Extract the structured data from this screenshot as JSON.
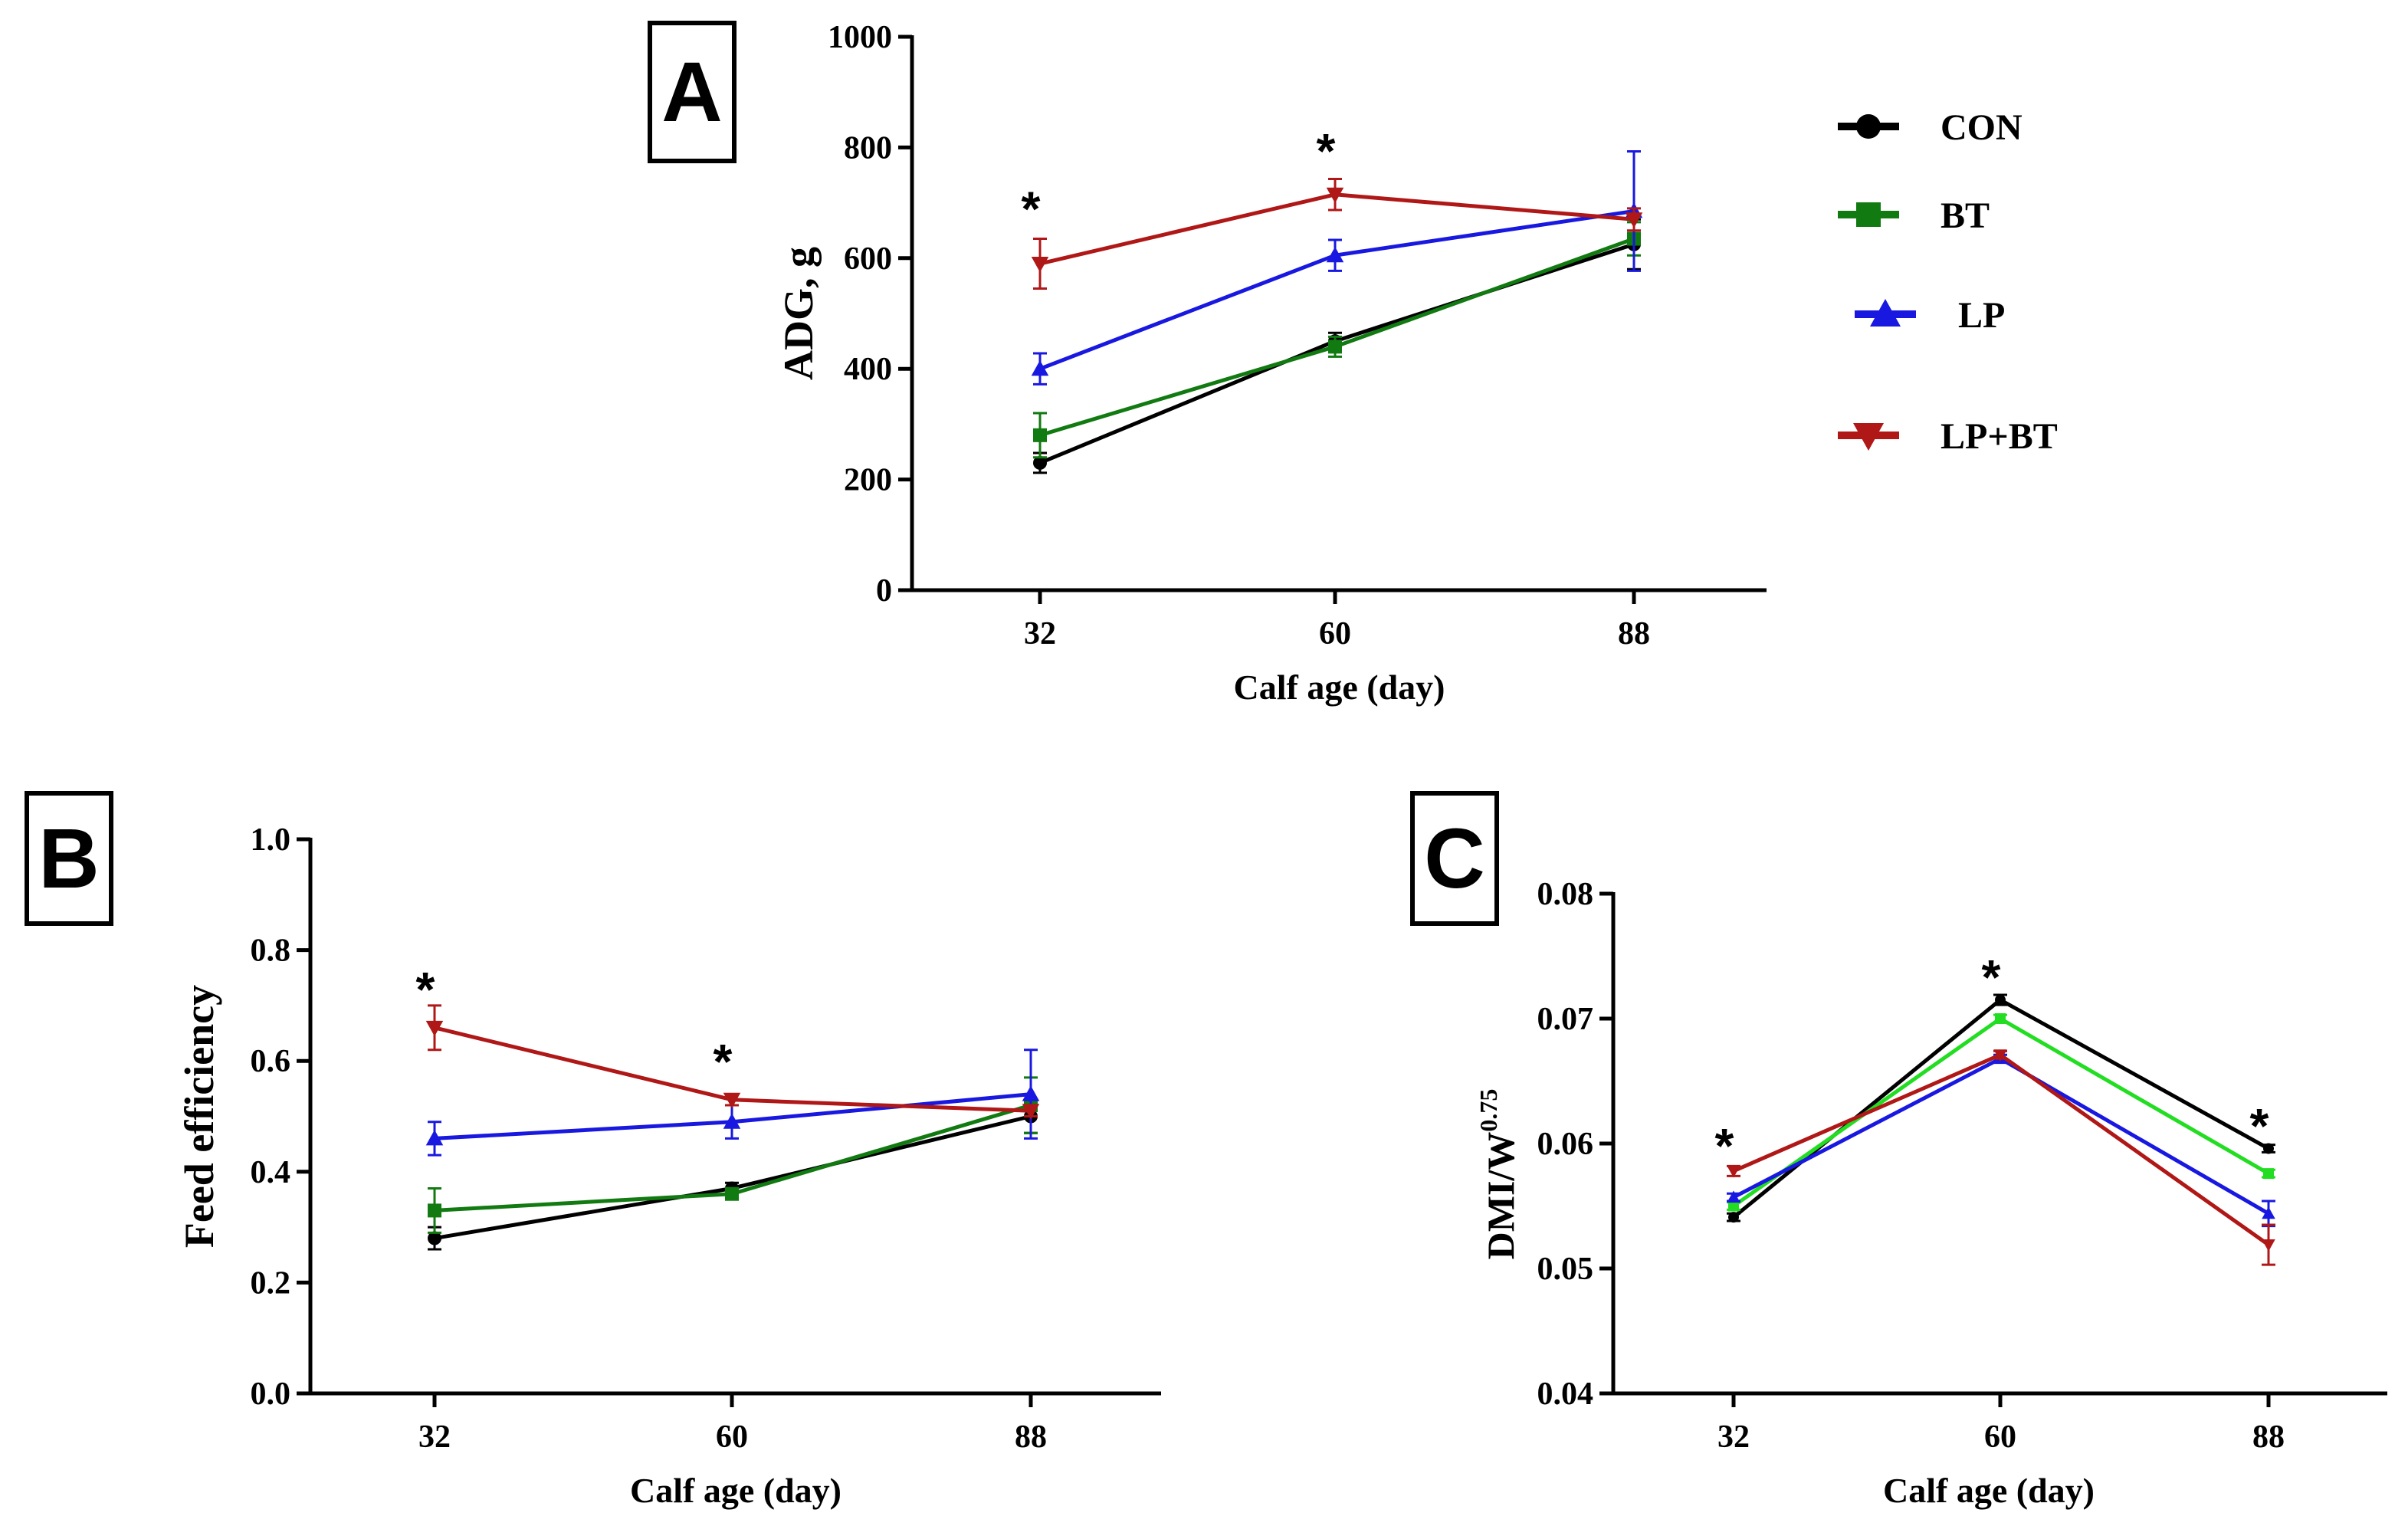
{
  "legend": {
    "entries": [
      {
        "name": "CON",
        "color": "#000000",
        "marker": "circle"
      },
      {
        "name": "BT",
        "color": "#117a11",
        "marker": "square"
      },
      {
        "name": "LP",
        "color": "#1818e0",
        "marker": "triangle-up"
      },
      {
        "name": "LP+BT",
        "color": "#b01717",
        "marker": "triangle-down"
      }
    ]
  },
  "chart_data": [
    {
      "id": "A",
      "panel_label": "A",
      "type": "line",
      "xlabel": "Calf age (day)",
      "ylabel": "ADG, g",
      "categories": [
        "32",
        "60",
        "88"
      ],
      "ylim": [
        0,
        1000
      ],
      "yticks": [
        0,
        200,
        400,
        600,
        800,
        1000
      ],
      "ytick_labels": [
        "0",
        "200",
        "400",
        "600",
        "800",
        "1000"
      ],
      "series": [
        {
          "name": "CON",
          "color": "#000000",
          "marker": "circle",
          "values": [
            230,
            450,
            625
          ],
          "errors": [
            18,
            15,
            45
          ]
        },
        {
          "name": "BT",
          "color": "#117a11",
          "marker": "square",
          "values": [
            280,
            440,
            635
          ],
          "errors": [
            40,
            18,
            30
          ]
        },
        {
          "name": "LP",
          "color": "#1818e0",
          "marker": "triangle-up",
          "values": [
            400,
            605,
            685
          ],
          "errors": [
            28,
            28,
            108
          ]
        },
        {
          "name": "LP+BT",
          "color": "#b01717",
          "marker": "triangle-down",
          "values": [
            590,
            715,
            670
          ],
          "errors": [
            45,
            28,
            20
          ]
        }
      ],
      "annotations": [
        {
          "text": "*",
          "category": "32",
          "y": 700
        },
        {
          "text": "*",
          "category": "60",
          "y": 805
        }
      ]
    },
    {
      "id": "B",
      "panel_label": "B",
      "type": "line",
      "xlabel": "Calf age (day)",
      "ylabel": "Feed efficiency",
      "categories": [
        "32",
        "60",
        "88"
      ],
      "ylim": [
        0,
        1.0
      ],
      "yticks": [
        0,
        0.2,
        0.4,
        0.6,
        0.8,
        1.0
      ],
      "ytick_labels": [
        "0.0",
        "0.2",
        "0.4",
        "0.6",
        "0.8",
        "1.0"
      ],
      "series": [
        {
          "name": "CON",
          "color": "#000000",
          "marker": "circle",
          "values": [
            0.28,
            0.37,
            0.5
          ],
          "errors": [
            0.02,
            0.01,
            0.03
          ]
        },
        {
          "name": "BT",
          "color": "#117a11",
          "marker": "square",
          "values": [
            0.33,
            0.36,
            0.52
          ],
          "errors": [
            0.04,
            0.01,
            0.05
          ]
        },
        {
          "name": "LP",
          "color": "#1818e0",
          "marker": "triangle-up",
          "values": [
            0.46,
            0.49,
            0.54
          ],
          "errors": [
            0.03,
            0.03,
            0.08
          ]
        },
        {
          "name": "LP+BT",
          "color": "#b01717",
          "marker": "triangle-down",
          "values": [
            0.66,
            0.53,
            0.51
          ],
          "errors": [
            0.04,
            0.01,
            0.01
          ]
        }
      ],
      "annotations": [
        {
          "text": "*",
          "category": "32",
          "y": 0.74
        },
        {
          "text": "*",
          "category": "60",
          "y": 0.61
        }
      ]
    },
    {
      "id": "C",
      "panel_label": "C",
      "type": "line",
      "xlabel": "Calf age (day)",
      "ylabel": "DMI/W",
      "ylabel_superscript": "0.75",
      "categories": [
        "32",
        "60",
        "88"
      ],
      "ylim": [
        0.04,
        0.08
      ],
      "yticks": [
        0.04,
        0.05,
        0.06,
        0.07,
        0.08
      ],
      "ytick_labels": [
        "0.04",
        "0.05",
        "0.06",
        "0.07",
        "0.08"
      ],
      "series": [
        {
          "name": "CON",
          "color": "#000000",
          "marker": "circle",
          "values": [
            0.0541,
            0.0715,
            0.0596
          ],
          "errors": [
            0.0003,
            0.0004,
            0.0003
          ]
        },
        {
          "name": "BT",
          "color": "#22dd22",
          "marker": "square",
          "values": [
            0.055,
            0.07,
            0.0576
          ],
          "errors": [
            0.0003,
            0.0003,
            0.0003
          ]
        },
        {
          "name": "LP",
          "color": "#1818e0",
          "marker": "triangle-up",
          "values": [
            0.0557,
            0.0668,
            0.0544
          ],
          "errors": [
            0.0003,
            0.0003,
            0.001
          ]
        },
        {
          "name": "LP+BT",
          "color": "#b01717",
          "marker": "triangle-down",
          "values": [
            0.0578,
            0.0671,
            0.0519
          ],
          "errors": [
            0.0004,
            0.0003,
            0.0016
          ]
        }
      ],
      "annotations": [
        {
          "text": "*",
          "category": "32",
          "y": 0.0603
        },
        {
          "text": "*",
          "category": "60",
          "y": 0.0738
        },
        {
          "text": "*",
          "category": "88",
          "y": 0.0619
        }
      ]
    }
  ]
}
